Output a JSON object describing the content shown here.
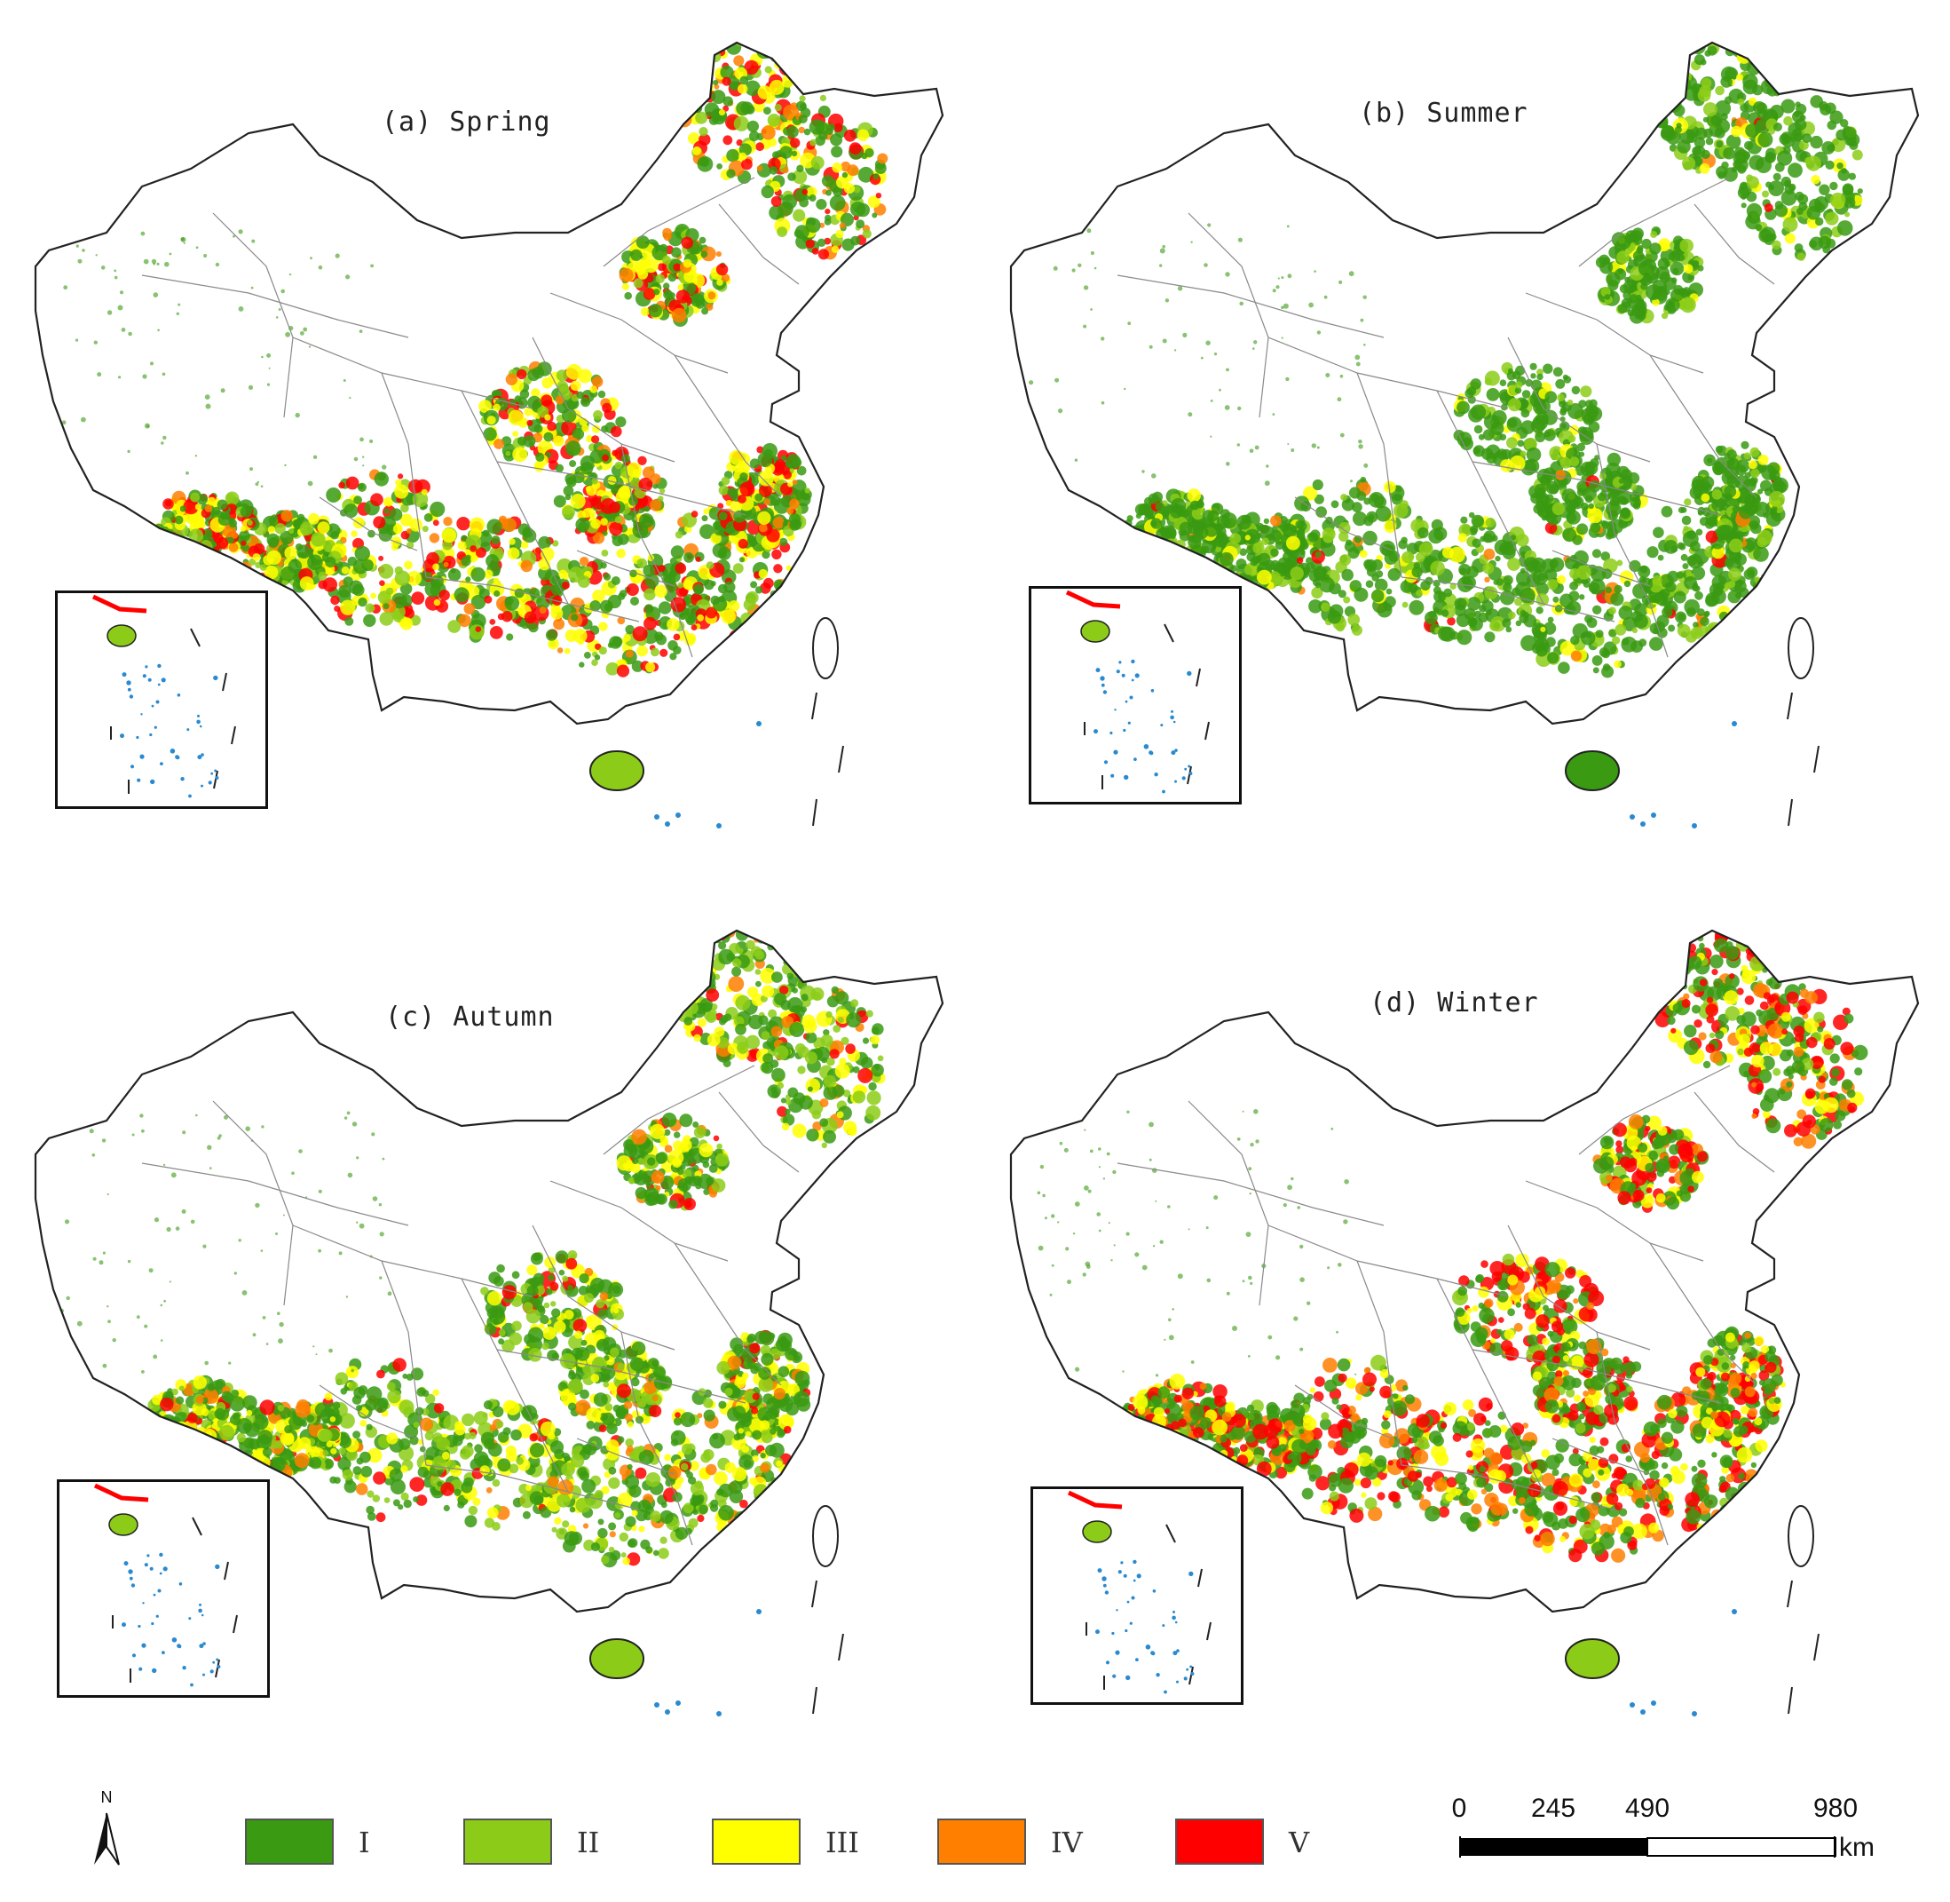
{
  "panels": [
    {
      "id": "a",
      "title": "(a) Spring",
      "palette": [
        "#3a9a12",
        "#8ccc18",
        "#ffff00",
        "#ff7f00",
        "#ff0000"
      ],
      "weights": [
        0.38,
        0.12,
        0.22,
        0.08,
        0.2
      ]
    },
    {
      "id": "b",
      "title": "(b) Summer",
      "palette": [
        "#3a9a12",
        "#8ccc18",
        "#ffff00",
        "#ff7f00",
        "#ff0000"
      ],
      "weights": [
        0.72,
        0.2,
        0.05,
        0.02,
        0.01
      ]
    },
    {
      "id": "c",
      "title": "(c) Autumn",
      "palette": [
        "#3a9a12",
        "#8ccc18",
        "#ffff00",
        "#ff7f00",
        "#ff0000"
      ],
      "weights": [
        0.48,
        0.22,
        0.18,
        0.06,
        0.06
      ]
    },
    {
      "id": "d",
      "title": "(d) Winter",
      "palette": [
        "#3a9a12",
        "#8ccc18",
        "#ffff00",
        "#ff7f00",
        "#ff0000"
      ],
      "weights": [
        0.4,
        0.06,
        0.16,
        0.12,
        0.26
      ]
    }
  ],
  "legend": {
    "north_label": "N",
    "classes": [
      {
        "label": "I",
        "color": "#3a9a12"
      },
      {
        "label": "II",
        "color": "#8ccc18"
      },
      {
        "label": "III",
        "color": "#ffff00"
      },
      {
        "label": "IV",
        "color": "#ff7f00"
      },
      {
        "label": "V",
        "color": "#ff0000"
      }
    ]
  },
  "scale_bar": {
    "ticks": [
      "0",
      "245",
      "490",
      "980"
    ],
    "unit": "km"
  }
}
